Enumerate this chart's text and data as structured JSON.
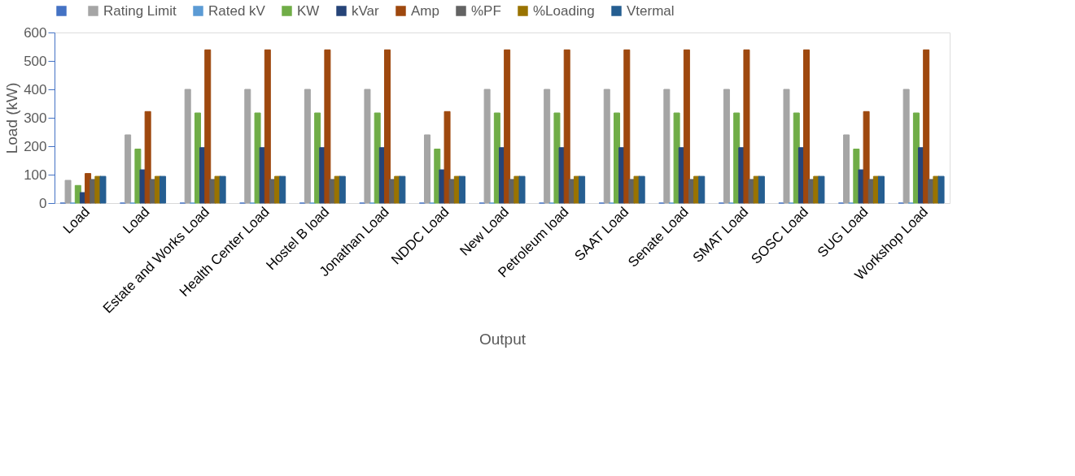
{
  "chart_data": {
    "type": "bar",
    "xlabel": "Output",
    "ylabel": "Load (kW)",
    "categories": [
      "Load",
      "Load",
      "Estate and Works Load",
      "Health Center Load",
      "Hostel B load",
      "Jonathan Load",
      "NDDC Load",
      "New Load",
      "Petroleum load",
      "SAAT Load",
      "Senate Load",
      "SMAT Load",
      "SOSC Load",
      "SUG Load",
      "Workshop Load"
    ],
    "ylim": [
      0,
      600
    ],
    "yticks": [
      0,
      100,
      200,
      300,
      400,
      500,
      600
    ],
    "grid": false,
    "legend": "top",
    "series": [
      {
        "color": "#4472c4",
        "values": [
          0,
          0,
          0,
          0,
          0,
          0,
          0,
          0,
          0,
          0,
          0,
          0,
          0,
          0,
          0
        ]
      },
      {
        "name": "Rating Limit",
        "color": "#a5a5a5",
        "values": [
          80,
          240,
          400,
          400,
          400,
          400,
          240,
          400,
          400,
          400,
          400,
          400,
          400,
          240,
          400
        ]
      },
      {
        "name": "Rated kV",
        "color": "#5b9bd5",
        "values": [
          0,
          0,
          0,
          0,
          0,
          0,
          0,
          0,
          0,
          0,
          0,
          0,
          0,
          0,
          0
        ]
      },
      {
        "name": "KW",
        "color": "#70ad47",
        "values": [
          62,
          190,
          317,
          317,
          317,
          317,
          190,
          317,
          317,
          317,
          317,
          317,
          317,
          190,
          317
        ]
      },
      {
        "name": "kVar",
        "color": "#264478",
        "values": [
          37,
          117,
          195,
          195,
          195,
          195,
          117,
          195,
          195,
          195,
          195,
          195,
          195,
          117,
          195
        ]
      },
      {
        "name": "Amp",
        "color": "#9e480e",
        "values": [
          104,
          322,
          539,
          539,
          539,
          539,
          322,
          539,
          539,
          539,
          539,
          539,
          539,
          322,
          539
        ]
      },
      {
        "name": "%PF",
        "color": "#636363",
        "values": [
          83,
          83,
          83,
          83,
          83,
          83,
          83,
          83,
          83,
          83,
          83,
          83,
          83,
          83,
          83
        ]
      },
      {
        "name": "%Loading",
        "color": "#997300",
        "values": [
          94,
          94,
          94,
          94,
          94,
          94,
          94,
          94,
          94,
          94,
          94,
          94,
          94,
          94,
          94
        ]
      },
      {
        "name": "Vtermal",
        "color": "#255e91",
        "values": [
          94,
          94,
          94,
          94,
          94,
          94,
          94,
          94,
          94,
          94,
          94,
          94,
          94,
          94,
          94
        ]
      }
    ]
  }
}
